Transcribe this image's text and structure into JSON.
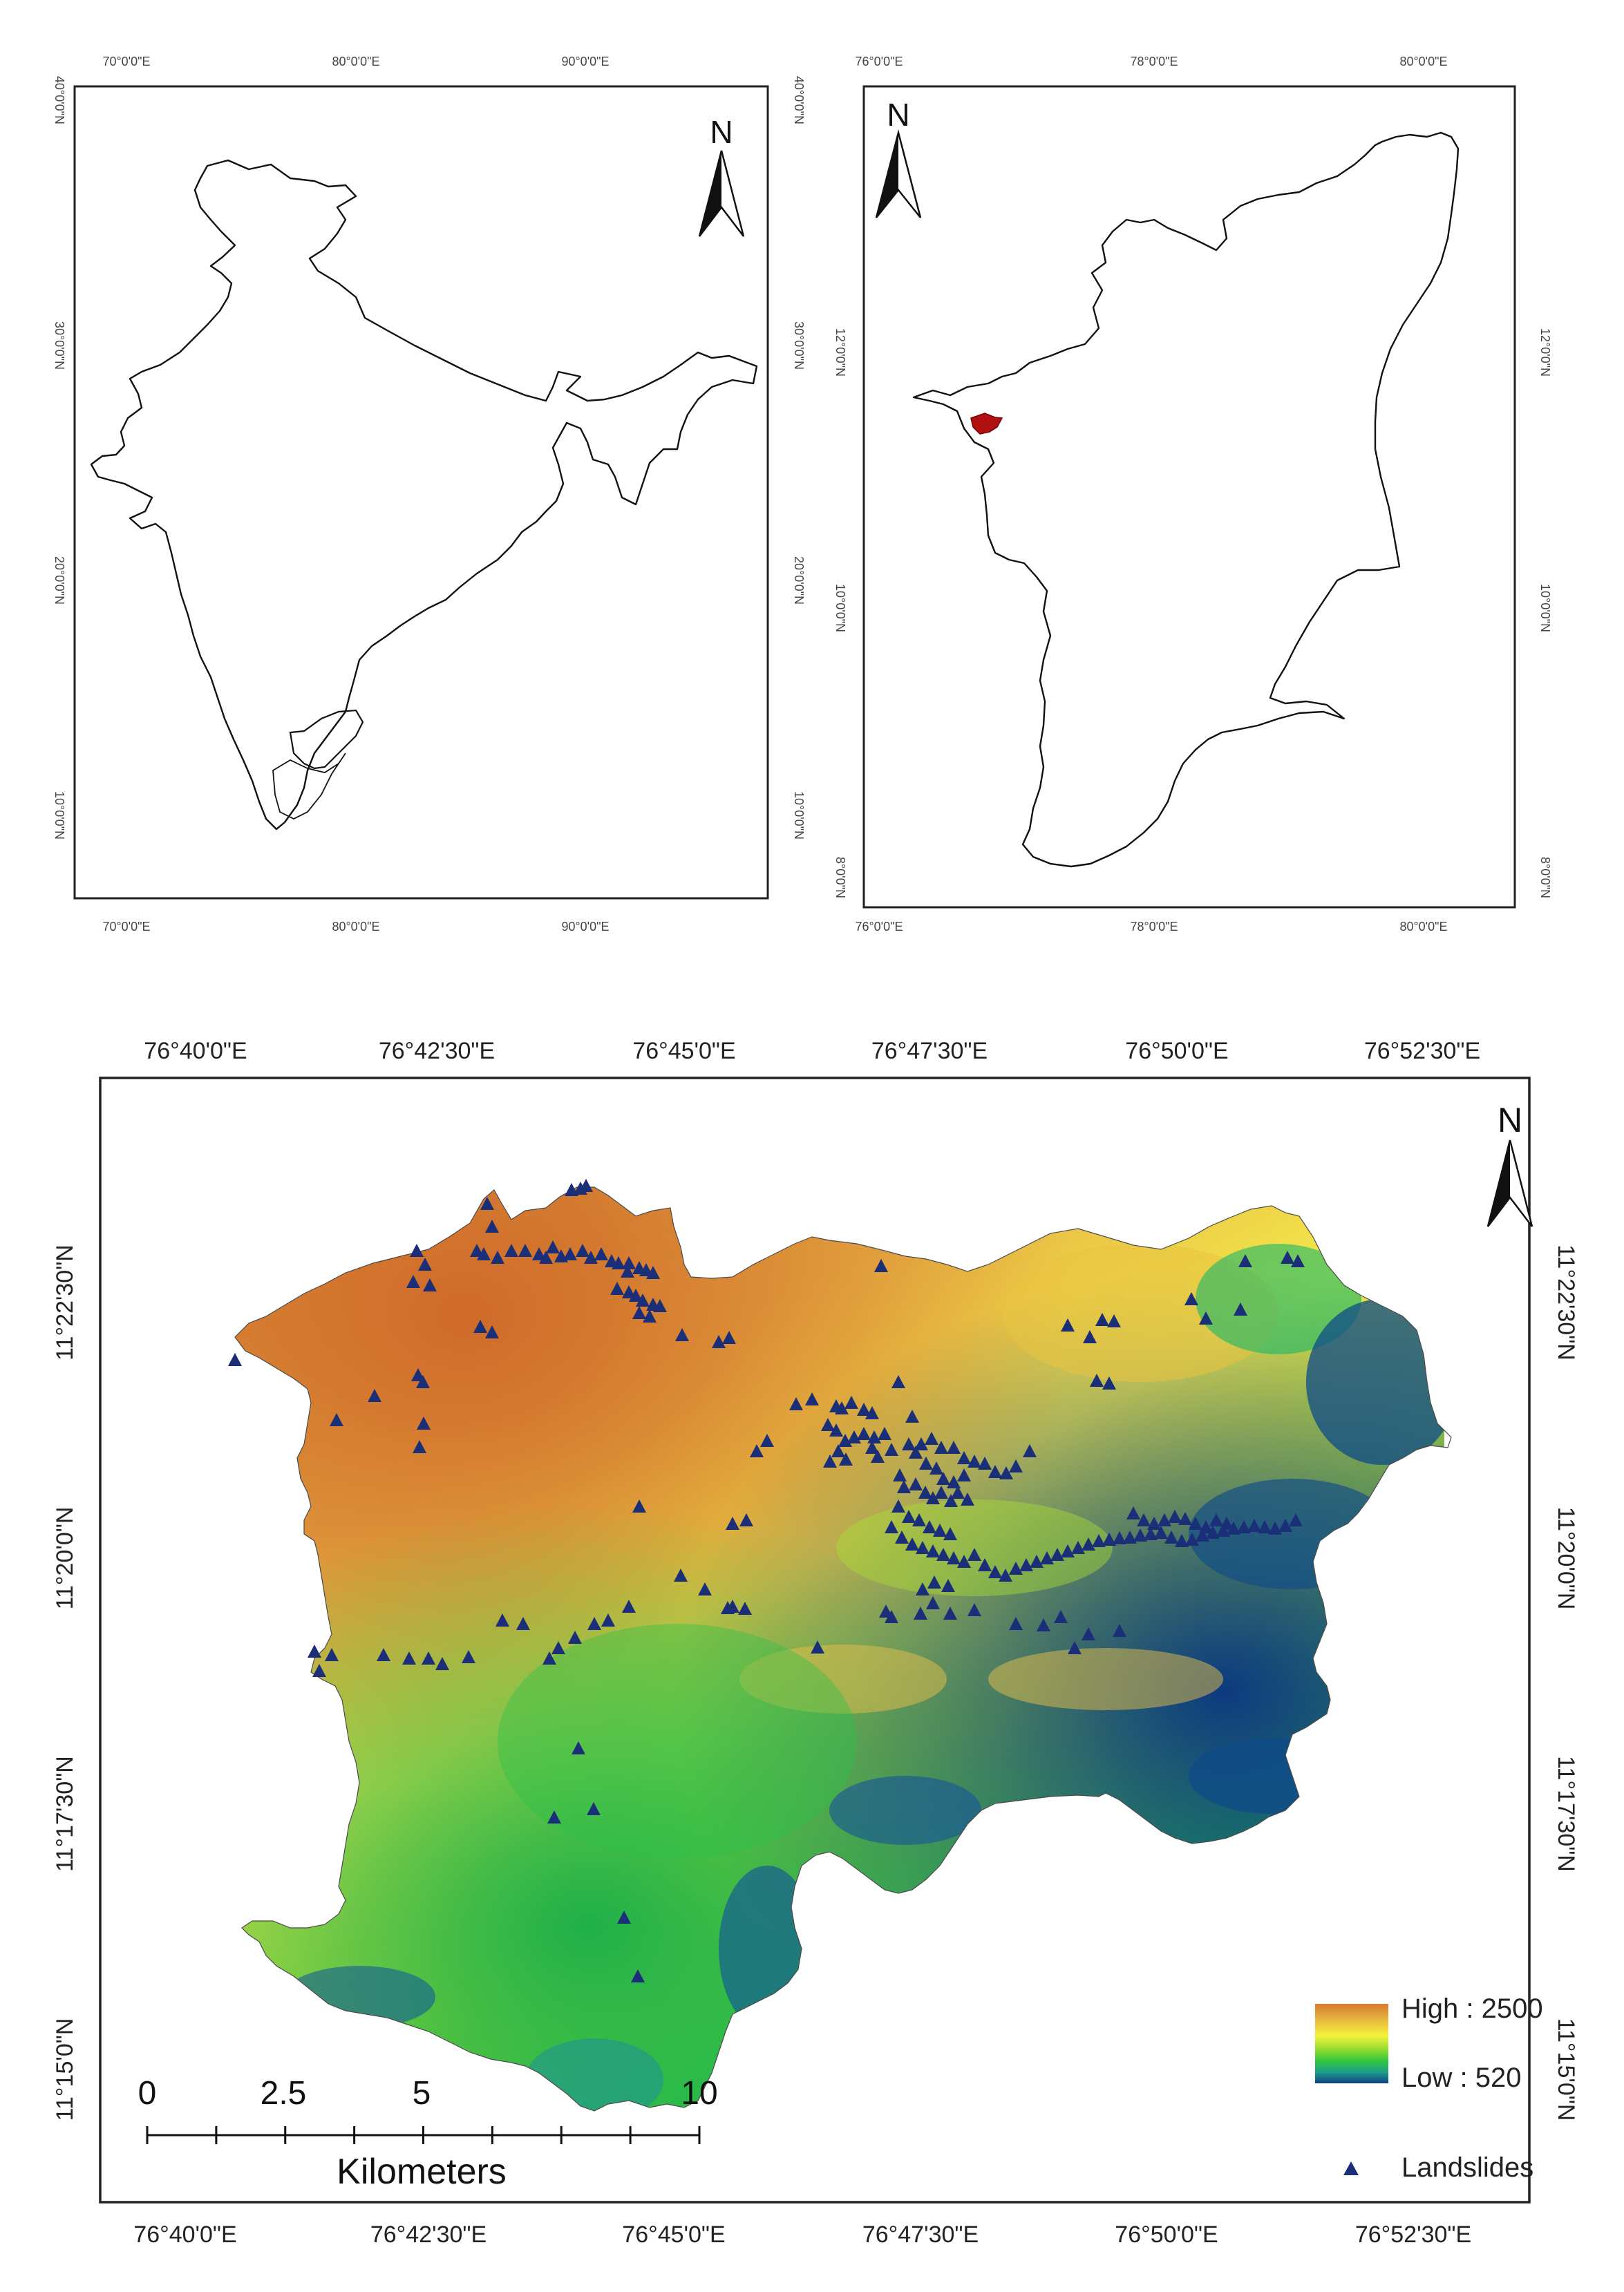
{
  "india_map": {
    "north_label": "N",
    "x_ticks_top": [
      "70°0'0\"E",
      "80°0'0\"E",
      "90°0'0\"E"
    ],
    "x_ticks_bottom": [
      "70°0'0\"E",
      "80°0'0\"E",
      "90°0'0\"E"
    ],
    "y_ticks_left": [
      "40°0'0\"N",
      "30°0'0\"N",
      "20°0'0\"N",
      "10°0'0\"N"
    ],
    "y_ticks_right": [
      "40°0'0\"N",
      "30°0'0\"N",
      "20°0'0\"N",
      "10°0'0\"N"
    ]
  },
  "tamilnadu_map": {
    "north_label": "N",
    "x_ticks_top": [
      "76°0'0\"E",
      "78°0'0\"E",
      "80°0'0\"E"
    ],
    "x_ticks_bottom": [
      "76°0'0\"E",
      "78°0'0\"E",
      "80°0'0\"E"
    ],
    "y_ticks_left": [
      "12°0'0\"N",
      "10°0'0\"N",
      "8°0'0\"N"
    ],
    "y_ticks_right": [
      "12°0'0\"N",
      "10°0'0\"N",
      "8°0'0\"N"
    ],
    "study_area_color": "#b01010"
  },
  "study_area_map": {
    "north_label": "N",
    "x_ticks_top": [
      "76°40'0\"E",
      "76°42'30\"E",
      "76°45'0\"E",
      "76°47'30\"E",
      "76°50'0\"E",
      "76°52'30\"E"
    ],
    "x_ticks_bottom": [
      "76°40'0\"E",
      "76°42'30\"E",
      "76°45'0\"E",
      "76°47'30\"E",
      "76°50'0\"E",
      "76°52'30\"E"
    ],
    "y_ticks_left": [
      "11°22'30\"N",
      "11°20'0\"N",
      "11°17'30\"N",
      "11°15'0\"N"
    ],
    "y_ticks_right": [
      "11°22'30\"N",
      "11°20'0\"N",
      "11°17'30\"N",
      "11°15'0\"N"
    ],
    "legend": {
      "high_label": "High : 2500",
      "low_label": "Low : 520",
      "landslides_label": "Landslides",
      "ramp_colors": [
        "#d97a2e",
        "#e8b940",
        "#f5f23a",
        "#8fdc2e",
        "#2fc63f",
        "#1e9e8a",
        "#0b3f86"
      ],
      "marker_color": "#1a2f78"
    },
    "scale_bar": {
      "labels": [
        "0",
        "2.5",
        "5",
        "10"
      ],
      "unit": "Kilometers"
    },
    "landslide_point_count": 210
  }
}
